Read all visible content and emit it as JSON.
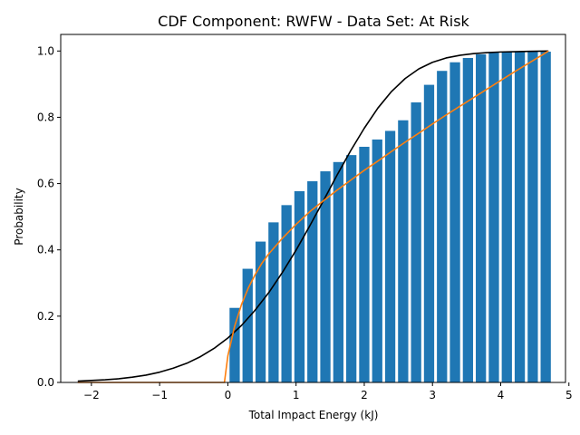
{
  "chart_data": {
    "type": "bar",
    "title": "CDF Component: RWFW - Data Set: At Risk",
    "xlabel": "Total Impact Energy (kJ)",
    "ylabel": "Probability",
    "xlim": [
      -2.45,
      4.95
    ],
    "ylim": [
      0.0,
      1.05
    ],
    "x_ticks": [
      -2,
      -1,
      0,
      1,
      2,
      3,
      4,
      5
    ],
    "x_tick_labels": [
      "−2",
      "−1",
      "0",
      "1",
      "2",
      "3",
      "4",
      "5"
    ],
    "y_ticks": [
      0.0,
      0.2,
      0.4,
      0.6,
      0.8,
      1.0
    ],
    "y_tick_labels": [
      "0.0",
      "0.2",
      "0.4",
      "0.6",
      "0.8",
      "1.0"
    ],
    "grid": false,
    "colors": {
      "bars": "#1f77b4",
      "black_curve": "#000000",
      "orange_curve": "#ff7f0e"
    },
    "bars": {
      "width": 0.15,
      "x": [
        0.1,
        0.29,
        0.48,
        0.67,
        0.86,
        1.05,
        1.24,
        1.43,
        1.62,
        1.81,
        2.0,
        2.19,
        2.38,
        2.57,
        2.76,
        2.95,
        3.14,
        3.33,
        3.52,
        3.71,
        3.9,
        4.09,
        4.28,
        4.47,
        4.66
      ],
      "values": [
        0.225,
        0.343,
        0.425,
        0.483,
        0.535,
        0.577,
        0.607,
        0.637,
        0.665,
        0.686,
        0.711,
        0.733,
        0.759,
        0.791,
        0.845,
        0.898,
        0.94,
        0.966,
        0.979,
        0.99,
        0.995,
        0.998,
        0.998,
        0.998,
        0.998
      ]
    },
    "series": [
      {
        "type": "line",
        "style": "black",
        "x": [
          -2.2,
          -2.0,
          -1.8,
          -1.6,
          -1.4,
          -1.2,
          -1.0,
          -0.8,
          -0.6,
          -0.4,
          -0.2,
          0.0,
          0.2,
          0.4,
          0.6,
          0.8,
          1.0,
          1.2,
          1.4,
          1.6,
          1.8,
          2.0,
          2.2,
          2.4,
          2.6,
          2.8,
          3.0,
          3.2,
          3.4,
          3.6,
          3.8,
          4.0,
          4.2,
          4.4,
          4.7
        ],
        "y": [
          0.004,
          0.006,
          0.008,
          0.011,
          0.016,
          0.022,
          0.031,
          0.043,
          0.058,
          0.078,
          0.103,
          0.134,
          0.172,
          0.218,
          0.271,
          0.332,
          0.399,
          0.472,
          0.548,
          0.625,
          0.699,
          0.767,
          0.828,
          0.878,
          0.917,
          0.946,
          0.966,
          0.979,
          0.987,
          0.992,
          0.995,
          0.997,
          0.998,
          0.999,
          1.0
        ]
      },
      {
        "type": "line",
        "style": "orange",
        "x": [
          -2.2,
          -1.0,
          -0.05,
          0.0,
          0.1,
          0.2,
          0.3,
          0.4,
          0.5,
          0.6,
          0.8,
          1.0,
          1.2,
          1.4,
          1.6,
          1.8,
          2.0,
          2.2,
          2.4,
          2.6,
          2.8,
          3.0,
          3.2,
          3.4,
          3.6,
          3.8,
          4.0,
          4.2,
          4.4,
          4.6,
          4.7
        ],
        "y": [
          0.0,
          0.0,
          0.0,
          0.08,
          0.17,
          0.235,
          0.285,
          0.325,
          0.36,
          0.388,
          0.435,
          0.477,
          0.515,
          0.548,
          0.58,
          0.61,
          0.64,
          0.668,
          0.697,
          0.725,
          0.752,
          0.78,
          0.807,
          0.833,
          0.859,
          0.885,
          0.911,
          0.937,
          0.962,
          0.987,
          1.0
        ]
      }
    ]
  }
}
